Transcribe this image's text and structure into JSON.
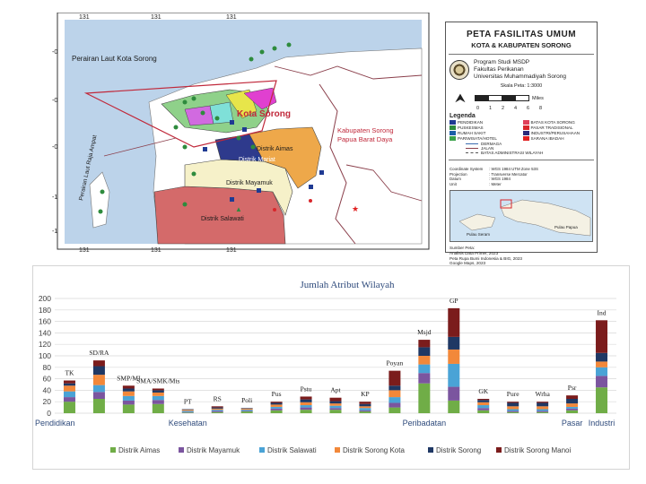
{
  "map": {
    "title": "PETA FASILITAS UMUM",
    "subtitle": "KOTA & KABUPATEN SORONG",
    "institution": [
      "Program Studi MSDP",
      "Fakultas Perikanan",
      "Universitas Muhammadiyah Sorong"
    ],
    "scale_label": "Skala Peta: 1:3000",
    "scale_ticks": [
      "0",
      "1",
      "2",
      "4",
      "6",
      "8"
    ],
    "scale_unit": "Miles",
    "legend_title": "Legenda",
    "legend_items": [
      {
        "label": "PENDIDIKAN",
        "color": "#1f3a93"
      },
      {
        "label": "BATAS KOTA SORONG",
        "color": "#e0405a"
      },
      {
        "label": "PUSKESMAS",
        "color": "#2e8b3d"
      },
      {
        "label": "PASAR TRADISIONAL",
        "color": "#d8262b"
      },
      {
        "label": "RUMAH SAKIT",
        "color": "#1c5fa8"
      },
      {
        "label": "INDUSTRI/PERUSAHAAN",
        "color": "#2a2a7a"
      },
      {
        "label": "PARIWISATA/HOTEL",
        "color": "#3aa24a"
      },
      {
        "label": "SARANA IBADAH",
        "color": "#e02020"
      }
    ],
    "legend_lines": [
      "DERMAGA",
      "JALAN",
      "BATAS ADMINISTRASI WILAYAH"
    ],
    "meta": [
      [
        "Coordinate System",
        ": WGS 1984 UTM Zone 53S"
      ],
      [
        "Projection",
        ": Transverse Mercator"
      ],
      [
        "Datum",
        ": WGS 1984"
      ],
      [
        "Unit",
        ": Meter"
      ]
    ],
    "inset_labels": [
      "Pulau Seram",
      "Pulau Papua"
    ],
    "source_lines": [
      "Sumber Peta:",
      "Analisis Data Primer, 2023",
      "Peta Rupa Bumi Indonesia & BIG, 2023",
      "Google Maps, 2023"
    ],
    "region_labels": {
      "sea": "Perairan Laut Kota Sorong",
      "city": "Kota Sorong",
      "regency": [
        "Kabupaten Sorong",
        "Papua Barat Daya"
      ],
      "raja_ampat": "Perairan Laut Raja Ampat",
      "aimas": "Distrik Aimas",
      "mariat": "Distrik Mariat",
      "mayamuk": "Distrik Mayamuk",
      "salawati": "Distrik Salawati"
    },
    "grid_labels_top": [
      "131",
      "131",
      "131",
      "131",
      "131",
      "131"
    ],
    "grid_labels_left": [
      "-0",
      "-0",
      "-0",
      "-0",
      "-1",
      "-1"
    ]
  },
  "chart_data": {
    "type": "bar",
    "stacked": true,
    "title": "Jumlah Atribut Wilayah",
    "ylim": [
      0,
      200
    ],
    "yticks": [
      0,
      20,
      40,
      60,
      80,
      100,
      120,
      140,
      160,
      180,
      200
    ],
    "grid": true,
    "legend_position": "bottom",
    "categories": [
      "TK",
      "SD/RA",
      "SMP/MI",
      "SMA/SMK/Mts",
      "PT",
      "RS",
      "Poli",
      "Pus",
      "Pstu",
      "Apt",
      "KP",
      "Poyan",
      "Msjd",
      "GP",
      "GK",
      "Pure",
      "Wrha",
      "Psr",
      "Ind"
    ],
    "groups": [
      {
        "label": "Pendidikan",
        "first": 0
      },
      {
        "label": "Kesehatan",
        "first": 4
      },
      {
        "label": "Peribadatan",
        "first": 12
      },
      {
        "label": "Pasar",
        "first": 17
      },
      {
        "label": "Industri",
        "first": 18
      }
    ],
    "series": [
      {
        "name": "Distrik Aimas",
        "color": "#70ad47",
        "values": [
          20,
          25,
          15,
          16,
          1,
          2,
          3,
          5,
          6,
          6,
          3,
          10,
          52,
          22,
          5,
          2,
          2,
          5,
          45
        ]
      },
      {
        "name": "Distrik Mayamuk",
        "color": "#7b559f",
        "values": [
          8,
          12,
          7,
          7,
          1,
          2,
          1,
          3,
          4,
          3,
          2,
          8,
          18,
          24,
          4,
          2,
          2,
          3,
          20
        ]
      },
      {
        "name": "Distrik Salawati",
        "color": "#4aa3d6",
        "values": [
          10,
          12,
          8,
          7,
          2,
          2,
          2,
          3,
          4,
          4,
          4,
          10,
          15,
          40,
          5,
          3,
          3,
          3,
          15
        ]
      },
      {
        "name": "Distrik Sorong Kota",
        "color": "#f2883a",
        "values": [
          10,
          18,
          8,
          6,
          2,
          2,
          2,
          4,
          5,
          4,
          3,
          12,
          15,
          25,
          5,
          5,
          5,
          6,
          10
        ]
      },
      {
        "name": "Distrik Sorong",
        "color": "#1f3864",
        "values": [
          4,
          15,
          5,
          4,
          1,
          2,
          1,
          3,
          5,
          4,
          4,
          8,
          15,
          22,
          4,
          6,
          6,
          8,
          15
        ]
      },
      {
        "name": "Distrik Sorong Manoi",
        "color": "#7b1c1c",
        "values": [
          5,
          10,
          5,
          3,
          0,
          2,
          0,
          2,
          5,
          6,
          4,
          26,
          13,
          50,
          2,
          2,
          2,
          6,
          57
        ]
      }
    ]
  }
}
